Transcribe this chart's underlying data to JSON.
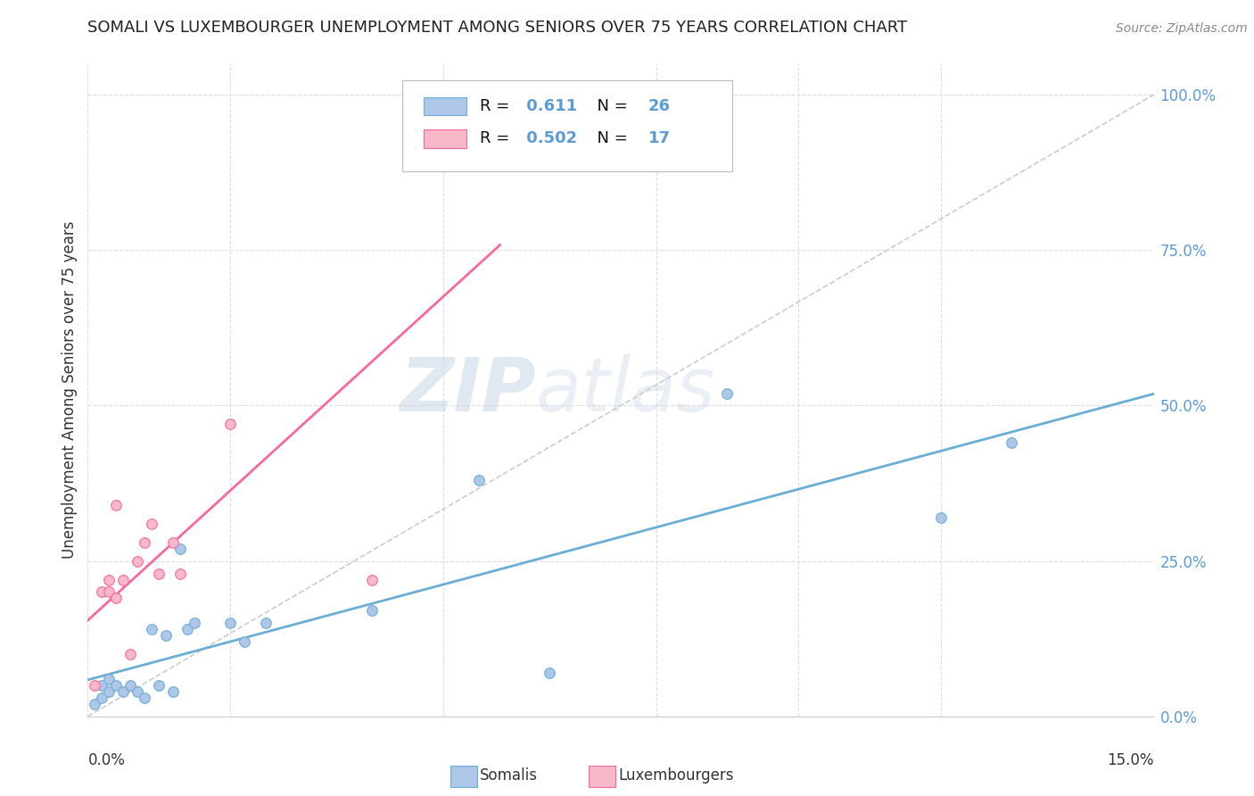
{
  "title": "SOMALI VS LUXEMBOURGER UNEMPLOYMENT AMONG SENIORS OVER 75 YEARS CORRELATION CHART",
  "source": "Source: ZipAtlas.com",
  "ylabel": "Unemployment Among Seniors over 75 years",
  "ylabel_right_ticks": [
    "0.0%",
    "25.0%",
    "50.0%",
    "75.0%",
    "100.0%"
  ],
  "ylabel_right_vals": [
    0.0,
    0.25,
    0.5,
    0.75,
    1.0
  ],
  "somali_R": 0.611,
  "somali_N": 26,
  "luxembourger_R": 0.502,
  "luxembourger_N": 17,
  "somali_color": "#aec6e8",
  "luxembourger_color": "#f9b8c8",
  "somali_line_color": "#6aaed6",
  "luxembourger_line_color": "#f768a1",
  "diagonal_color": "#cccccc",
  "x_min": 0.0,
  "x_max": 0.15,
  "y_min": 0.0,
  "y_max": 1.05,
  "somali_x": [
    0.001,
    0.002,
    0.002,
    0.003,
    0.003,
    0.004,
    0.005,
    0.006,
    0.007,
    0.008,
    0.009,
    0.01,
    0.011,
    0.012,
    0.013,
    0.014,
    0.015,
    0.02,
    0.022,
    0.025,
    0.04,
    0.055,
    0.065,
    0.09,
    0.12,
    0.13
  ],
  "somali_y": [
    0.02,
    0.03,
    0.05,
    0.04,
    0.06,
    0.05,
    0.04,
    0.05,
    0.04,
    0.03,
    0.14,
    0.05,
    0.13,
    0.04,
    0.27,
    0.14,
    0.15,
    0.15,
    0.12,
    0.15,
    0.17,
    0.38,
    0.07,
    0.52,
    0.32,
    0.44
  ],
  "luxembourger_x": [
    0.001,
    0.002,
    0.003,
    0.003,
    0.004,
    0.004,
    0.005,
    0.006,
    0.007,
    0.008,
    0.009,
    0.01,
    0.012,
    0.013,
    0.02,
    0.04,
    0.056
  ],
  "luxembourger_y": [
    0.05,
    0.2,
    0.2,
    0.22,
    0.34,
    0.19,
    0.22,
    0.1,
    0.25,
    0.28,
    0.31,
    0.23,
    0.28,
    0.23,
    0.47,
    0.22,
    0.95
  ],
  "watermark_zip": "ZIP",
  "watermark_atlas": "atlas",
  "background_color": "#ffffff",
  "grid_color": "#dddddd",
  "xtick_positions": [
    0.0,
    0.02,
    0.05,
    0.08,
    0.1,
    0.12,
    0.15
  ]
}
